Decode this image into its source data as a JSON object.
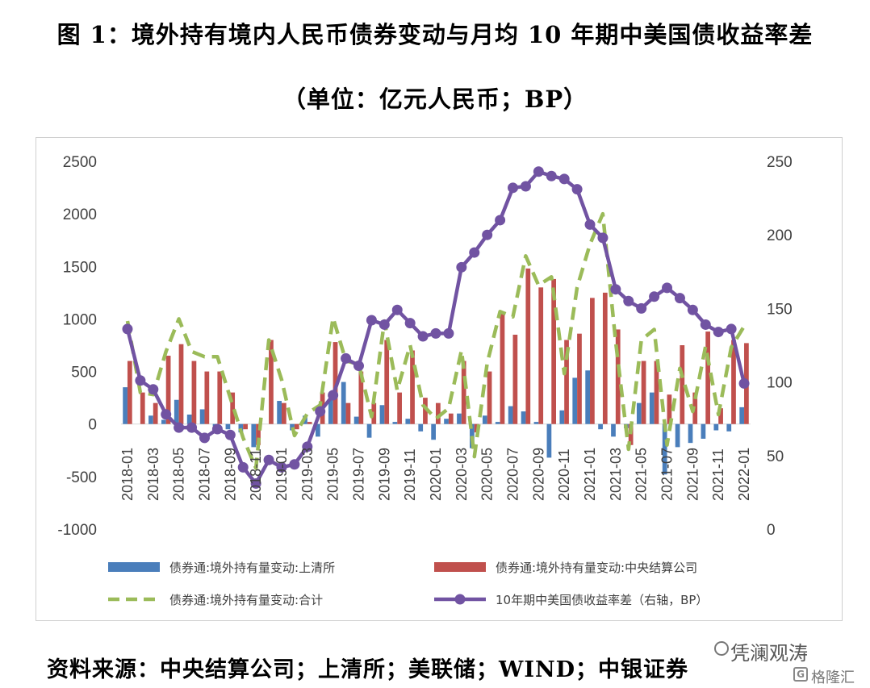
{
  "title": {
    "line1": "图 1：境外持有境内人民币债券变动与月均 10 年期中美国债收益率差",
    "line2": "（单位：亿元人民币；BP）"
  },
  "source": "资料来源：中央结算公司；上清所；美联储；WIND；中银证券",
  "watermark": {
    "brand": "凭澜观涛",
    "logo_text": "格隆汇"
  },
  "chart_data": {
    "type": "bar",
    "left_axis": {
      "min": -1000,
      "max": 2500,
      "ticks": [
        "2500",
        "2000",
        "1500",
        "1000",
        "500",
        "0",
        "-500",
        "-1000"
      ]
    },
    "right_axis": {
      "min": 0,
      "max": 250,
      "ticks": [
        "250",
        "200",
        "150",
        "100",
        "50",
        "0"
      ]
    },
    "x_tick_labels": [
      "2018-01",
      "2018-03",
      "2018-05",
      "2018-07",
      "2018-09",
      "2018-11",
      "2019-01",
      "2019-03",
      "2019-05",
      "2019-07",
      "2019-09",
      "2019-11",
      "2020-01",
      "2020-03",
      "2020-05",
      "2020-07",
      "2020-09",
      "2020-11",
      "2021-01",
      "2021-03",
      "2021-05",
      "2021-07",
      "2021-09",
      "2021-11",
      "2022-01"
    ],
    "months": [
      "2018-01",
      "2018-02",
      "2018-03",
      "2018-04",
      "2018-05",
      "2018-06",
      "2018-07",
      "2018-08",
      "2018-09",
      "2018-10",
      "2018-11",
      "2018-12",
      "2019-01",
      "2019-02",
      "2019-03",
      "2019-04",
      "2019-05",
      "2019-06",
      "2019-07",
      "2019-08",
      "2019-09",
      "2019-10",
      "2019-11",
      "2019-12",
      "2020-01",
      "2020-02",
      "2020-03",
      "2020-04",
      "2020-05",
      "2020-06",
      "2020-07",
      "2020-08",
      "2020-09",
      "2020-10",
      "2020-11",
      "2020-12",
      "2021-01",
      "2021-02",
      "2021-03",
      "2021-04",
      "2021-05",
      "2021-06",
      "2021-07",
      "2021-08",
      "2021-09",
      "2021-10",
      "2021-11",
      "2021-12",
      "2022-01"
    ],
    "series": [
      {
        "name": "债券通:境外持有量变动:上清所",
        "color": "#4a7ebb",
        "values": [
          350,
          0,
          80,
          40,
          230,
          90,
          140,
          -20,
          -50,
          -80,
          -220,
          0,
          220,
          -60,
          80,
          -120,
          230,
          400,
          70,
          -130,
          180,
          20,
          50,
          -70,
          -150,
          50,
          100,
          -230,
          80,
          20,
          170,
          120,
          20,
          -320,
          130,
          440,
          510,
          -50,
          -120,
          -40,
          200,
          300,
          -480,
          -220,
          -180,
          -140,
          -60,
          -70,
          160
        ]
      },
      {
        "name": "债券通:境外持有量变动:中央结算公司",
        "color": "#c0504d",
        "values": [
          600,
          300,
          200,
          650,
          760,
          600,
          500,
          500,
          300,
          -50,
          -200,
          800,
          200,
          -50,
          20,
          300,
          780,
          200,
          500,
          200,
          800,
          300,
          700,
          250,
          200,
          100,
          600,
          -80,
          500,
          1050,
          850,
          1480,
          1300,
          1380,
          800,
          860,
          1200,
          1250,
          900,
          -200,
          600,
          600,
          280,
          750,
          300,
          880,
          150,
          800,
          770
        ]
      },
      {
        "name": "债券通:境外持有量变动:合计",
        "color": "#9bbb59",
        "dashed": true,
        "values": [
          980,
          300,
          280,
          690,
          1000,
          690,
          640,
          640,
          250,
          -130,
          -420,
          800,
          420,
          -110,
          100,
          180,
          1010,
          600,
          570,
          70,
          980,
          320,
          750,
          180,
          50,
          150,
          700,
          -310,
          580,
          1070,
          1020,
          1600,
          1320,
          1400,
          480,
          1300,
          1710,
          2000,
          780,
          -240,
          800,
          900,
          -200,
          530,
          120,
          740,
          90,
          730,
          930
        ]
      },
      {
        "name": "10年期中美国债收益率差（右轴，BP）",
        "color": "#7153a2",
        "axis": "right",
        "values": [
          136,
          101,
          95,
          78,
          69,
          69,
          62,
          68,
          64,
          42,
          31,
          47,
          42,
          44,
          56,
          80,
          91,
          116,
          111,
          142,
          139,
          149,
          140,
          131,
          133,
          133,
          178,
          188,
          200,
          210,
          232,
          233,
          243,
          240,
          238,
          231,
          207,
          198,
          163,
          155,
          150,
          158,
          164,
          157,
          149,
          139,
          134,
          136,
          99
        ]
      }
    ]
  }
}
